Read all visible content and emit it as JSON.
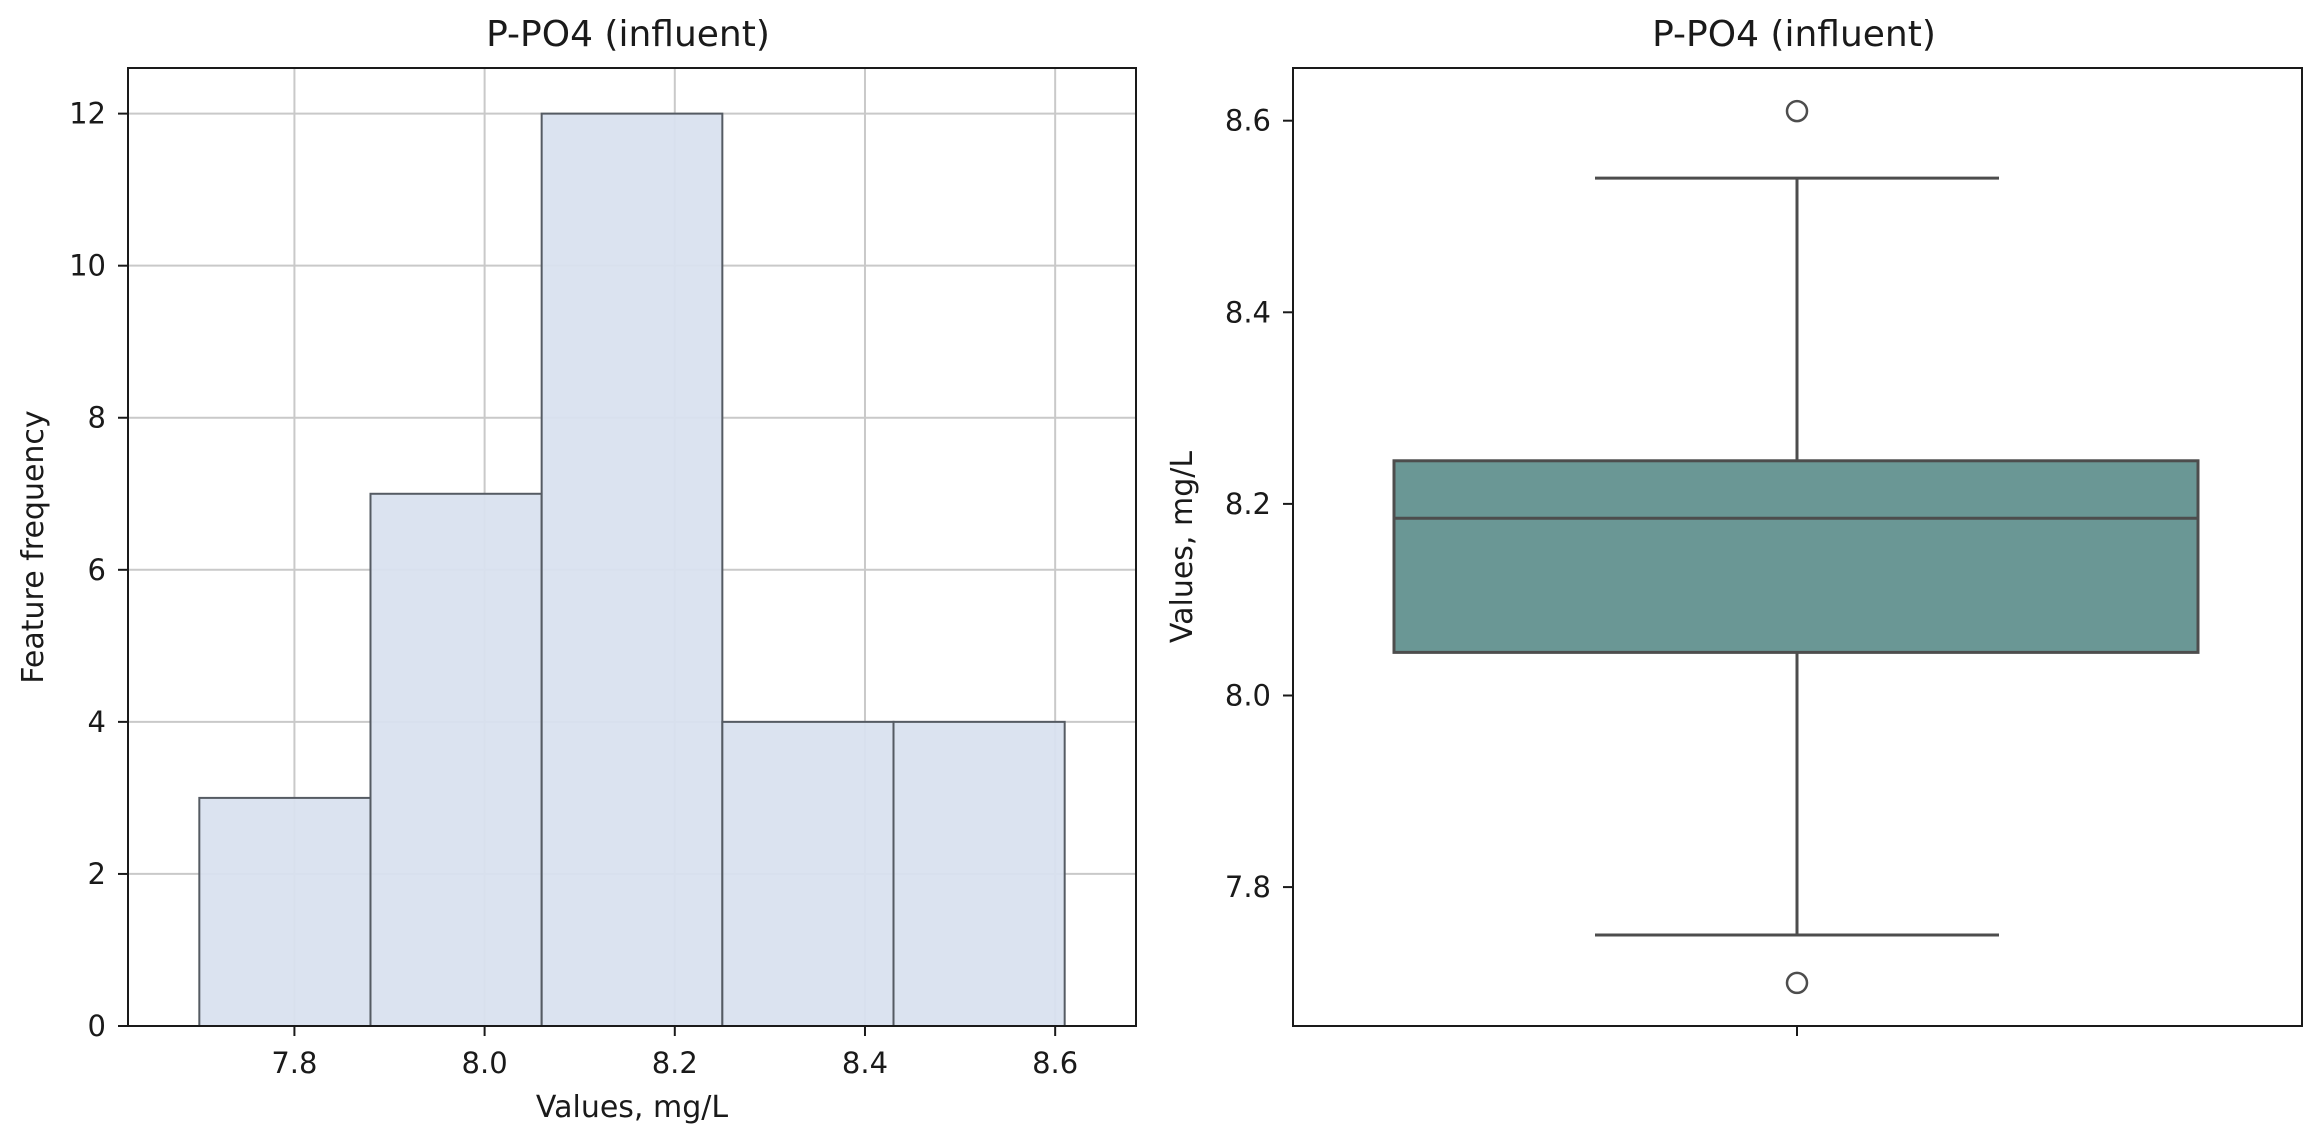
{
  "chart_data": [
    {
      "type": "bar",
      "subtype": "histogram",
      "title": "P-PO4 (influent)",
      "xlabel": "Values, mg/L",
      "ylabel": "Feature frequency",
      "bins": [
        {
          "start": 7.7,
          "end": 7.88,
          "count": 3
        },
        {
          "start": 7.88,
          "end": 8.06,
          "count": 7
        },
        {
          "start": 8.06,
          "end": 8.25,
          "count": 12
        },
        {
          "start": 8.25,
          "end": 8.43,
          "count": 4
        },
        {
          "start": 8.43,
          "end": 8.61,
          "count": 4
        }
      ],
      "xlim": [
        7.625,
        8.685
      ],
      "ylim": [
        0,
        12.6
      ],
      "xticks": [
        "7.8",
        "8.0",
        "8.2",
        "8.4",
        "8.6"
      ],
      "xtick_values": [
        7.8,
        8.0,
        8.2,
        8.4,
        8.6
      ],
      "yticks": [
        "0",
        "2",
        "4",
        "6",
        "8",
        "10",
        "12"
      ],
      "ytick_values": [
        0,
        2,
        4,
        6,
        8,
        10,
        12
      ],
      "grid": true,
      "bar_color": "#d9e2ef",
      "edge_color": "#555b63"
    },
    {
      "type": "boxplot",
      "title": "P-PO4 (influent)",
      "ylabel": "Values, mg/L",
      "xlabel": "",
      "box": {
        "q1": 8.045,
        "median": 8.185,
        "q3": 8.245,
        "whisker_low": 7.75,
        "whisker_high": 8.54,
        "outliers": [
          8.61,
          7.7
        ]
      },
      "ylim": [
        7.655,
        8.655
      ],
      "yticks": [
        "7.8",
        "8.0",
        "8.2",
        "8.4",
        "8.6"
      ],
      "ytick_values": [
        7.8,
        8.0,
        8.2,
        8.4,
        8.6
      ],
      "grid": false,
      "box_color": "#6a9795",
      "line_color": "#4d4d4d"
    }
  ]
}
